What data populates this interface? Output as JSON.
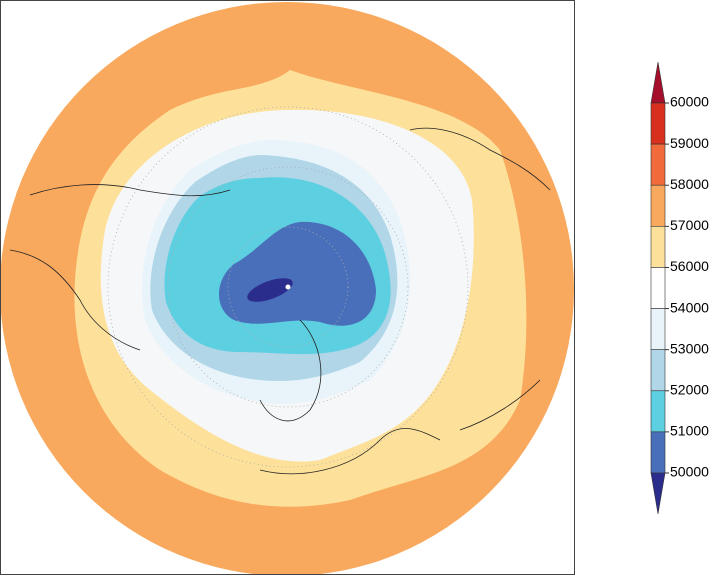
{
  "colorbar": {
    "levels": [
      60000,
      59000,
      58000,
      57000,
      56000,
      54000,
      53000,
      52000,
      51000,
      50000
    ],
    "colors": [
      "#a50f2b",
      "#d7301f",
      "#f06a3c",
      "#f9a95e",
      "#fde19a",
      "#ffffff",
      "#e8f4fa",
      "#b0d6e8",
      "#5ccfe0",
      "#4a6fba",
      "#2b2d8c"
    ]
  }
}
